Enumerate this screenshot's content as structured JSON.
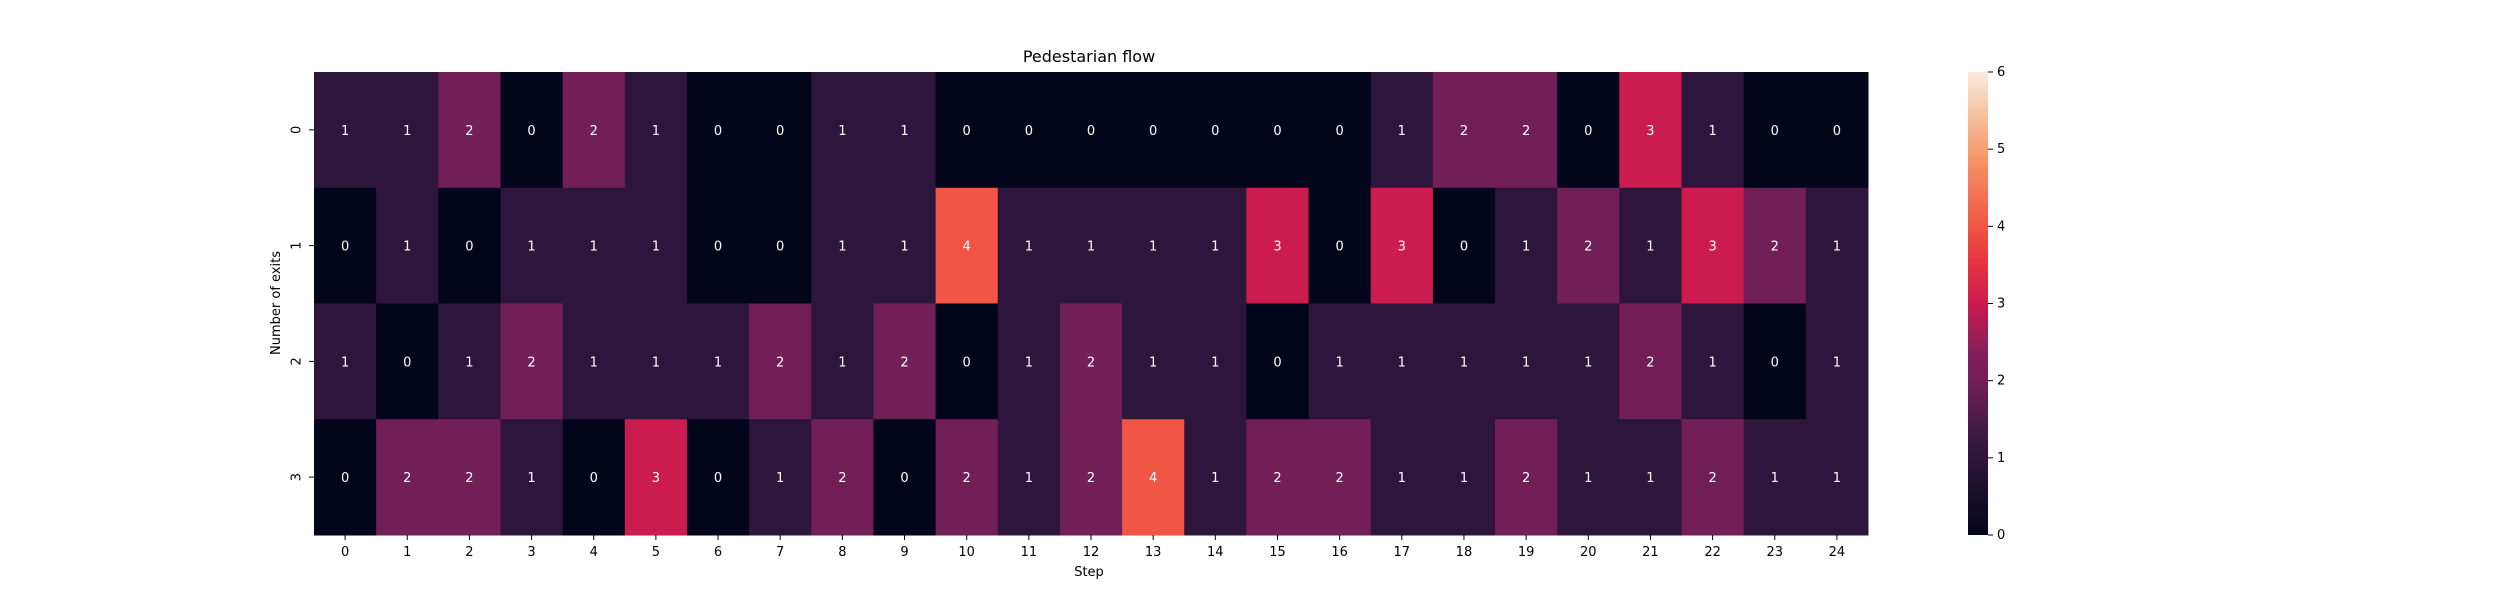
{
  "chart_data": {
    "type": "heatmap",
    "title": "Pedestarian flow",
    "xlabel": "Step",
    "ylabel": "Number of exits",
    "x_categories": [
      "0",
      "1",
      "2",
      "3",
      "4",
      "5",
      "6",
      "7",
      "8",
      "9",
      "10",
      "11",
      "12",
      "13",
      "14",
      "15",
      "16",
      "17",
      "18",
      "19",
      "20",
      "21",
      "22",
      "23",
      "24"
    ],
    "y_categories": [
      "0",
      "1",
      "2",
      "3"
    ],
    "values": [
      [
        1,
        1,
        2,
        0,
        2,
        1,
        0,
        0,
        1,
        1,
        0,
        0,
        0,
        0,
        0,
        0,
        0,
        1,
        2,
        2,
        0,
        3,
        1,
        0,
        0
      ],
      [
        0,
        1,
        0,
        1,
        1,
        1,
        0,
        0,
        1,
        1,
        4,
        1,
        1,
        1,
        1,
        3,
        0,
        3,
        0,
        1,
        2,
        1,
        3,
        2,
        1
      ],
      [
        1,
        0,
        1,
        2,
        1,
        1,
        1,
        2,
        1,
        2,
        0,
        1,
        2,
        1,
        1,
        0,
        1,
        1,
        1,
        1,
        1,
        2,
        1,
        0,
        1
      ],
      [
        0,
        2,
        2,
        1,
        0,
        3,
        0,
        1,
        2,
        0,
        2,
        1,
        2,
        4,
        1,
        2,
        2,
        1,
        1,
        2,
        1,
        1,
        2,
        1,
        1
      ]
    ],
    "colorbar": {
      "min": 0,
      "max": 6,
      "ticks": [
        "0",
        "1",
        "2",
        "3",
        "4",
        "5",
        "6"
      ]
    },
    "colormap": "rocket",
    "annotations": true,
    "grid": false,
    "legend": "colorbar-right"
  }
}
